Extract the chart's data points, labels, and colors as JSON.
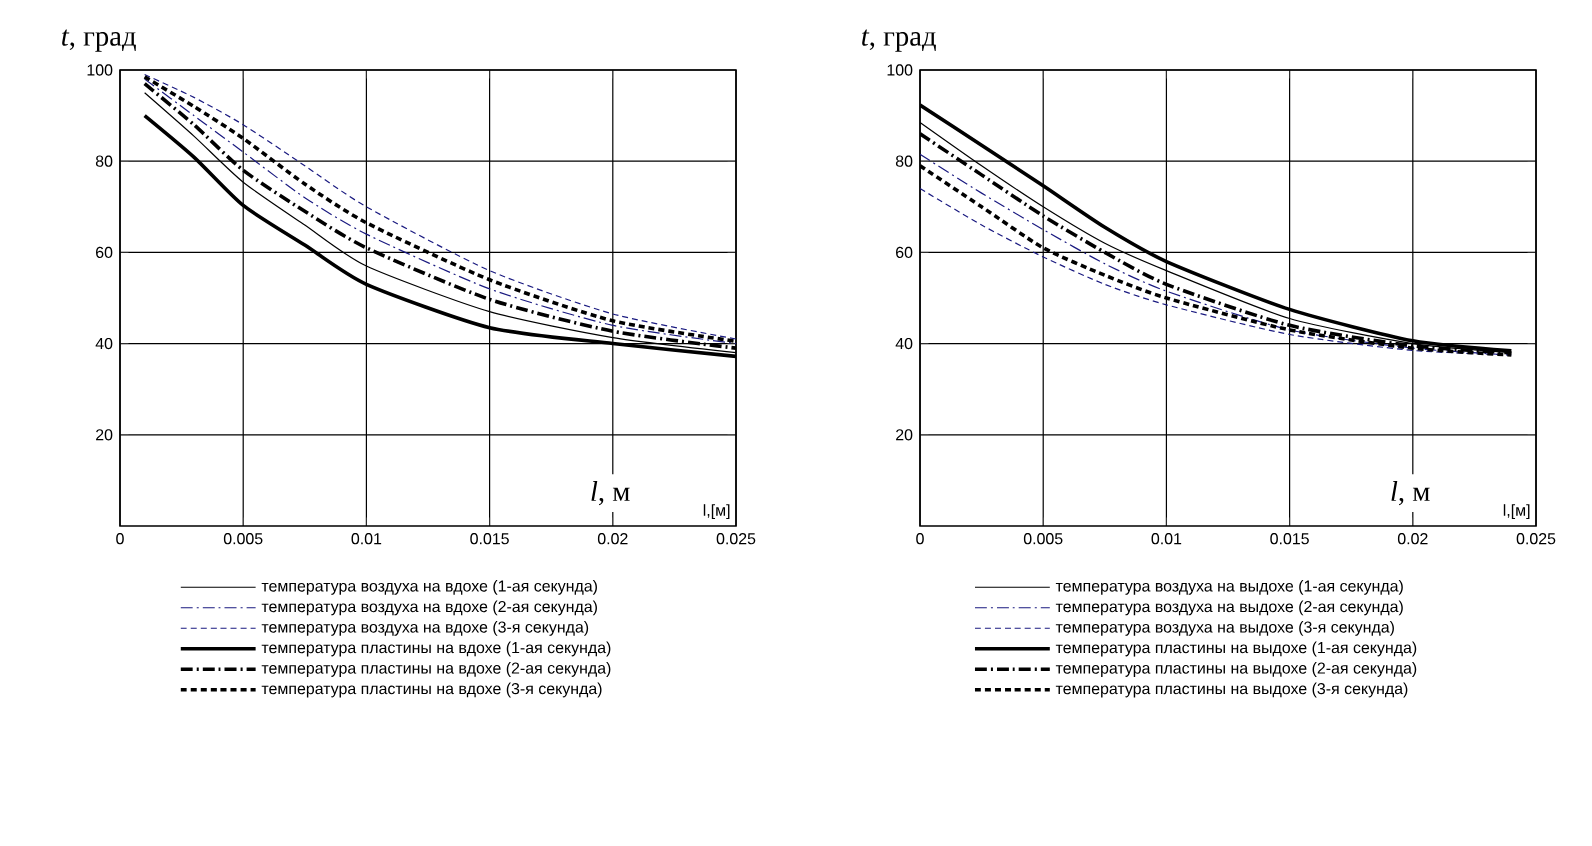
{
  "chart_data": [
    {
      "type": "line",
      "ylabel": "*t*, град",
      "xlabel": "*l*, м",
      "annotations": [
        "l,[м]"
      ],
      "xlim": [
        0,
        0.025
      ],
      "ylim": [
        0,
        100
      ],
      "xticks": [
        0,
        0.005,
        0.01,
        0.015,
        0.02,
        0.025
      ],
      "yticks": [
        20,
        40,
        60,
        80,
        100
      ],
      "grid": true,
      "legend": "bottom",
      "series": [
        {
          "name": "температура воздуха на вдохе (1-ая секунда)",
          "color": "#000000",
          "line_style": "solid",
          "x": [
            0.001,
            0.003,
            0.005,
            0.0075,
            0.01,
            0.015,
            0.02,
            0.025
          ],
          "values": [
            95,
            85.5,
            75.4,
            66,
            57,
            47,
            41.3,
            38
          ]
        },
        {
          "name": "температура воздуха на вдохе (2-ая секунда)",
          "color": "#1a1a80",
          "line_style": "dashdot",
          "x": [
            0.001,
            0.003,
            0.005,
            0.0075,
            0.01,
            0.015,
            0.02,
            0.025
          ],
          "values": [
            98,
            90,
            82,
            72,
            64,
            52,
            44,
            40
          ]
        },
        {
          "name": "температура воздуха на вдохе (3-я секунда)",
          "color": "#1a1a80",
          "line_style": "dashed",
          "x": [
            0.001,
            0.003,
            0.005,
            0.0075,
            0.01,
            0.015,
            0.02,
            0.025
          ],
          "values": [
            99,
            94,
            88,
            79,
            70,
            56,
            46.5,
            41
          ]
        },
        {
          "name": "температура пластины на вдохе (1-ая секунда)",
          "color": "#000000",
          "line_style": "solid",
          "x": [
            0.001,
            0.003,
            0.005,
            0.0075,
            0.01,
            0.015,
            0.02,
            0.025
          ],
          "values": [
            90,
            80.9,
            70.3,
            61.6,
            53,
            43.5,
            40,
            37.2
          ]
        },
        {
          "name": "температура пластины на вдохе (2-ая секунда)",
          "color": "#000000",
          "line_style": "dashdot",
          "x": [
            0.001,
            0.003,
            0.005,
            0.0075,
            0.01,
            0.015,
            0.02,
            0.025
          ],
          "values": [
            97,
            88,
            78,
            69,
            61,
            49.7,
            42.7,
            39
          ]
        },
        {
          "name": "температура пластины на вдохе (3-я секунда)",
          "color": "#000000",
          "line_style": "dashed",
          "x": [
            0.001,
            0.003,
            0.005,
            0.0075,
            0.01,
            0.015,
            0.02,
            0.025
          ],
          "values": [
            98.5,
            92,
            85,
            75,
            66.5,
            54,
            45,
            40.5
          ]
        }
      ]
    },
    {
      "type": "line",
      "ylabel": "*t*, град",
      "xlabel": "*l*, м",
      "annotations": [
        "l,[м]"
      ],
      "xlim": [
        0,
        0.025
      ],
      "ylim": [
        0,
        100
      ],
      "xticks": [
        0,
        0.005,
        0.01,
        0.015,
        0.02,
        0.025
      ],
      "yticks": [
        20,
        40,
        60,
        80,
        100
      ],
      "grid": true,
      "legend": "bottom",
      "series": [
        {
          "name": "температура воздуха на выдохе (1-ая секунда)",
          "color": "#000000",
          "line_style": "solid",
          "x": [
            0,
            0.0025,
            0.005,
            0.0075,
            0.01,
            0.015,
            0.02,
            0.024
          ],
          "values": [
            88.5,
            79,
            70,
            62,
            56,
            45.5,
            40,
            38
          ]
        },
        {
          "name": "температура воздуха на выдохе (2-ая секунда)",
          "color": "#1a1a80",
          "line_style": "dashdot",
          "x": [
            0,
            0.0025,
            0.005,
            0.0075,
            0.01,
            0.015,
            0.02,
            0.024
          ],
          "values": [
            81.5,
            73,
            65,
            57.5,
            51.5,
            43,
            39,
            37.5
          ]
        },
        {
          "name": "температура воздуха на выдохе (3-я секунда)",
          "color": "#1a1a80",
          "line_style": "dashed",
          "x": [
            0,
            0.0025,
            0.005,
            0.0075,
            0.01,
            0.015,
            0.02,
            0.024
          ],
          "values": [
            74,
            66,
            59,
            53,
            48.5,
            42,
            38.5,
            37.5
          ]
        },
        {
          "name": "температура пластины на выдохе (1-ая секунда)",
          "color": "#000000",
          "line_style": "solid",
          "x": [
            0,
            0.0025,
            0.005,
            0.0075,
            0.01,
            0.015,
            0.02,
            0.024
          ],
          "values": [
            92.3,
            83.5,
            74.6,
            65.5,
            58,
            47.5,
            40.6,
            38.4
          ]
        },
        {
          "name": "температура пластины на выдохе (2-ая секунда)",
          "color": "#000000",
          "line_style": "dashdot",
          "x": [
            0,
            0.0025,
            0.005,
            0.0075,
            0.01,
            0.015,
            0.02,
            0.024
          ],
          "values": [
            86,
            77,
            68,
            60,
            53,
            44,
            39.5,
            38
          ]
        },
        {
          "name": "температура пластины на выдохе (3-я секунда)",
          "color": "#000000",
          "line_style": "dashed",
          "x": [
            0,
            0.0025,
            0.005,
            0.0075,
            0.01,
            0.015,
            0.02,
            0.024
          ],
          "values": [
            79,
            70,
            61,
            55,
            50,
            43,
            39,
            37.5
          ]
        }
      ]
    }
  ]
}
